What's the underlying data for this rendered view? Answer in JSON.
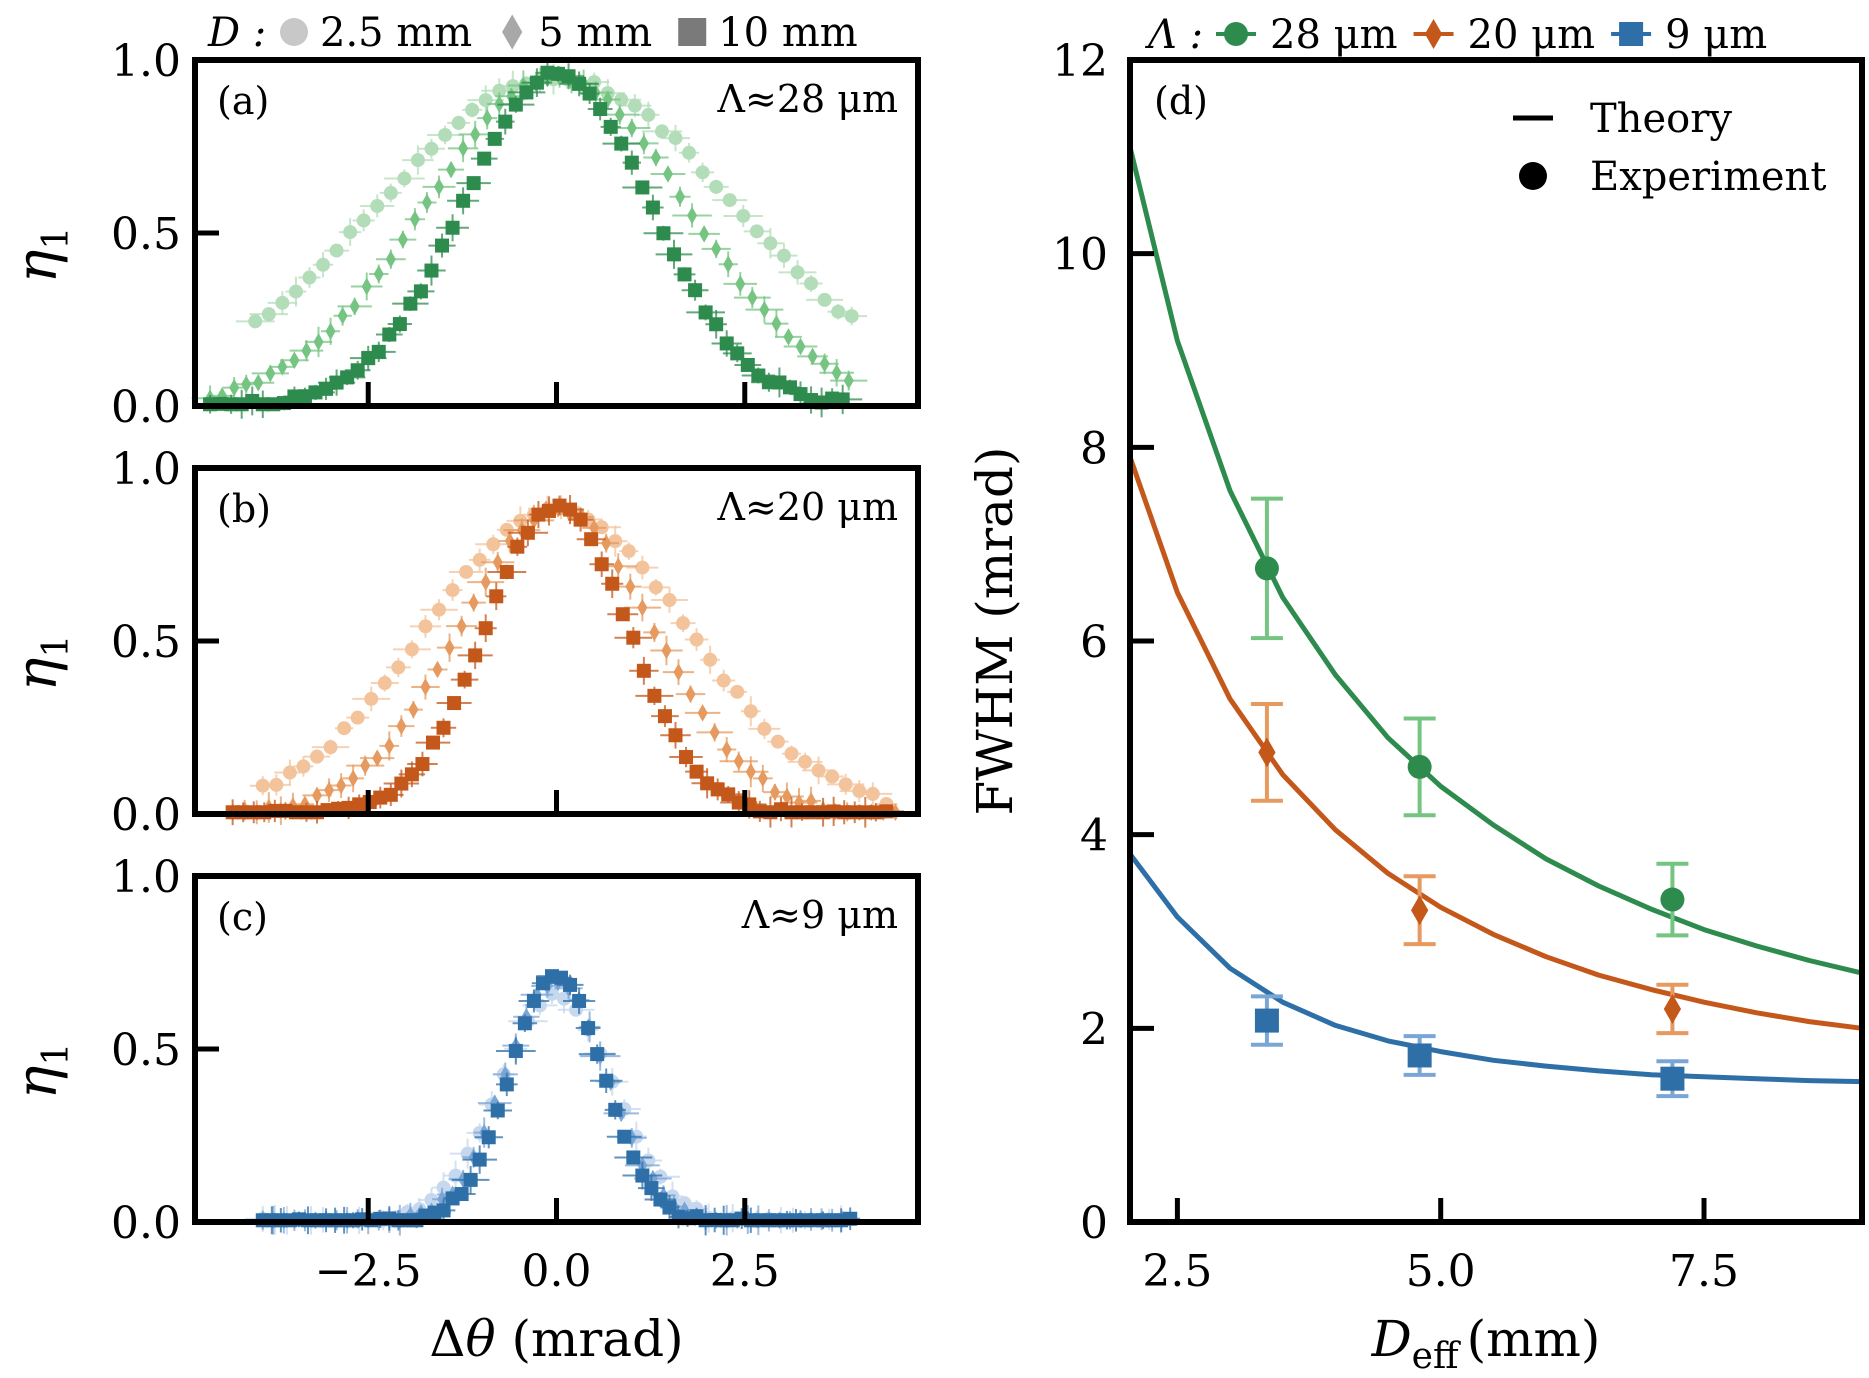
{
  "figure": {
    "top_legend_left": {
      "prefix": "D :",
      "entries": [
        {
          "marker": "circle",
          "label": "2.5 mm",
          "color": "#c8c8c8"
        },
        {
          "marker": "diamond",
          "label": "5 mm",
          "color": "#a8a8a8"
        },
        {
          "marker": "square",
          "label": "10 mm",
          "color": "#7a7a7a"
        }
      ]
    },
    "top_legend_right": {
      "prefix": "Λ :",
      "entries": [
        {
          "marker": "circle",
          "label": "28 μm",
          "color": "#2e8b4e"
        },
        {
          "marker": "diamond",
          "label": "20 μm",
          "color": "#c4581b"
        },
        {
          "marker": "square",
          "label": "9 μm",
          "color": "#2e6fa8"
        }
      ]
    },
    "colors": {
      "green": [
        "#b3ddb9",
        "#75c482",
        "#2e8b4e"
      ],
      "orange": [
        "#f3c39c",
        "#e69a5f",
        "#c4581b"
      ],
      "blue": [
        "#c5d8ee",
        "#7aa6d6",
        "#2e6fa8"
      ]
    }
  },
  "chart_data": [
    {
      "type": "scatter",
      "panel": "(a)",
      "annotation": "Λ≈28 μm",
      "xlabel": "",
      "ylabel": "η1",
      "xlim": [
        -4.8,
        4.8
      ],
      "ylim": [
        0,
        1
      ],
      "yticks": [
        "0.0",
        "0.5",
        "1.0"
      ],
      "xticks": [
        -2.5,
        0,
        2.5
      ],
      "series": [
        {
          "name": "2.5 mm",
          "marker": "circle",
          "shade": 0,
          "peak": 0.95,
          "sigma": 2.4,
          "xrange": [
            -4,
            4
          ],
          "step": 0.18
        },
        {
          "name": "5 mm",
          "marker": "diamond",
          "shade": 1,
          "peak": 0.95,
          "sigma": 1.75,
          "xrange": [
            -4.6,
            3.9
          ],
          "step": 0.16
        },
        {
          "name": "10 mm",
          "marker": "square",
          "shade": 2,
          "peak": 0.96,
          "sigma": 1.25,
          "xrange": [
            -4.6,
            3.9
          ],
          "step": 0.14
        }
      ]
    },
    {
      "type": "scatter",
      "panel": "(b)",
      "annotation": "Λ≈20 μm",
      "xlabel": "",
      "ylabel": "η1",
      "xlim": [
        -4.8,
        4.8
      ],
      "ylim": [
        0,
        1
      ],
      "yticks": [
        "0.0",
        "0.5",
        "1.0"
      ],
      "xticks": [
        -2.5,
        0,
        2.5
      ],
      "series": [
        {
          "name": "2.5 mm",
          "marker": "circle",
          "shade": 0,
          "peak": 0.88,
          "sigma": 1.75,
          "xrange": [
            -3.9,
            4.5
          ],
          "step": 0.18
        },
        {
          "name": "5 mm",
          "marker": "diamond",
          "shade": 1,
          "peak": 0.88,
          "sigma": 1.3,
          "xrange": [
            -4.3,
            4.5
          ],
          "step": 0.16
        },
        {
          "name": "10 mm",
          "marker": "square",
          "shade": 2,
          "peak": 0.89,
          "sigma": 0.95,
          "xrange": [
            -4.3,
            4.5
          ],
          "step": 0.14
        }
      ]
    },
    {
      "type": "scatter",
      "panel": "(c)",
      "annotation": "Λ≈9 μm",
      "xlabel": "Δθ (mrad)",
      "ylabel": "η1",
      "xlim": [
        -4.8,
        4.8
      ],
      "ylim": [
        0,
        1
      ],
      "yticks": [
        "0.0",
        "0.5",
        "1.0"
      ],
      "xticks": [
        -2.5,
        0,
        2.5
      ],
      "xticklabels": [
        "−2.5",
        "0.0",
        "2.5"
      ],
      "series": [
        {
          "name": "2.5 mm",
          "marker": "circle",
          "shade": 0,
          "peak": 0.66,
          "sigma": 0.75,
          "xrange": [
            -3.9,
            3.9
          ],
          "step": 0.16
        },
        {
          "name": "5 mm",
          "marker": "diamond",
          "shade": 1,
          "peak": 0.7,
          "sigma": 0.68,
          "xrange": [
            -3.9,
            3.9
          ],
          "step": 0.14
        },
        {
          "name": "10 mm",
          "marker": "square",
          "shade": 2,
          "peak": 0.71,
          "sigma": 0.62,
          "xrange": [
            -3.9,
            3.9
          ],
          "step": 0.12
        }
      ]
    },
    {
      "type": "line",
      "panel": "(d)",
      "xlabel": "Deff (mm)",
      "xlabel_main": "D",
      "xlabel_sub": "eff",
      "xlabel_unit": "(mm)",
      "ylabel": "FWHM (mrad)",
      "xlim": [
        2.05,
        9.0
      ],
      "ylim": [
        0,
        12
      ],
      "xticks": [
        2.5,
        5.0,
        7.5
      ],
      "xticklabels": [
        "2.5",
        "5.0",
        "7.5"
      ],
      "yticks": [
        0,
        2,
        4,
        6,
        8,
        10,
        12
      ],
      "legend": [
        {
          "label": "Theory",
          "marker": "line"
        },
        {
          "label": "Experiment",
          "marker": "circle"
        }
      ],
      "legend_position": "top-right",
      "theory": [
        {
          "name": "28 μm",
          "x": [
            2.05,
            2.5,
            3.0,
            3.5,
            4.0,
            4.5,
            5.0,
            5.5,
            6.0,
            6.5,
            7.0,
            7.5,
            8.0,
            8.5,
            9.0
          ],
          "y": [
            11.1,
            9.1,
            7.55,
            6.45,
            5.65,
            5.0,
            4.5,
            4.1,
            3.75,
            3.47,
            3.23,
            3.02,
            2.85,
            2.7,
            2.57
          ]
        },
        {
          "name": "20 μm",
          "x": [
            2.05,
            2.5,
            3.0,
            3.5,
            4.0,
            4.5,
            5.0,
            5.5,
            6.0,
            6.5,
            7.0,
            7.5,
            8.0,
            8.5,
            9.0
          ],
          "y": [
            7.9,
            6.5,
            5.4,
            4.62,
            4.05,
            3.6,
            3.25,
            2.97,
            2.74,
            2.55,
            2.4,
            2.27,
            2.16,
            2.07,
            2.0
          ]
        },
        {
          "name": "9 μm",
          "x": [
            2.05,
            2.5,
            3.0,
            3.5,
            4.0,
            4.5,
            5.0,
            5.5,
            6.0,
            6.5,
            7.0,
            7.5,
            8.0,
            8.5,
            9.0
          ],
          "y": [
            3.8,
            3.15,
            2.62,
            2.27,
            2.03,
            1.87,
            1.76,
            1.67,
            1.61,
            1.56,
            1.52,
            1.5,
            1.48,
            1.46,
            1.45
          ]
        }
      ],
      "experiment": [
        {
          "name": "28 μm",
          "marker": "circle",
          "x": [
            3.35,
            4.8,
            7.2
          ],
          "y": [
            6.75,
            4.7,
            3.33
          ],
          "err": [
            0.72,
            0.5,
            0.37
          ]
        },
        {
          "name": "20 μm",
          "marker": "diamond",
          "x": [
            3.35,
            4.8,
            7.2
          ],
          "y": [
            4.85,
            3.22,
            2.2
          ],
          "err": [
            0.5,
            0.35,
            0.25
          ]
        },
        {
          "name": "9 μm",
          "marker": "square",
          "x": [
            3.35,
            4.8,
            7.2
          ],
          "y": [
            2.08,
            1.72,
            1.48
          ],
          "err": [
            0.25,
            0.2,
            0.18
          ]
        }
      ]
    }
  ]
}
